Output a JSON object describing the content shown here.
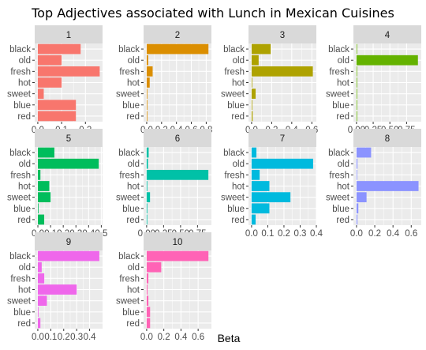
{
  "chart_data": {
    "type": "bar",
    "orientation": "horizontal",
    "title": "Top Adjectives associated with Lunch in Mexican Cuisines",
    "xlabel": "Beta",
    "ylabel": "",
    "categories": [
      "black",
      "old",
      "fresh",
      "hot",
      "sweet",
      "blue",
      "red"
    ],
    "facet_scales": "free_x",
    "grid": true,
    "legend": "none",
    "panels": [
      {
        "label": "1",
        "color": "#F8766D",
        "xlim": [
          -0.013,
          0.272
        ],
        "ticks": [
          0.0,
          0.1,
          0.2
        ],
        "tick_labels": [
          "0.0",
          "0.1",
          "0.2"
        ],
        "values": {
          "black": 0.18,
          "old": 0.1,
          "fresh": 0.26,
          "hot": 0.1,
          "sweet": 0.025,
          "blue": 0.16,
          "red": 0.16
        }
      },
      {
        "label": "2",
        "color": "#DB8E00",
        "xlim": [
          -0.042,
          0.87
        ],
        "ticks": [
          0.0,
          0.2,
          0.4,
          0.6,
          0.8
        ],
        "tick_labels": [
          "0.0",
          "0.2",
          "0.4",
          "0.6",
          "0.8"
        ],
        "values": {
          "black": 0.83,
          "old": 0.02,
          "fresh": 0.08,
          "hot": 0.04,
          "sweet": 0.005,
          "blue": 0.003,
          "red": 0.003
        }
      },
      {
        "label": "3",
        "color": "#AEA200",
        "xlim": [
          -0.031,
          0.645
        ],
        "ticks": [
          0.0,
          0.2,
          0.4,
          0.6
        ],
        "tick_labels": [
          "0.0",
          "0.2",
          "0.4",
          "0.6"
        ],
        "values": {
          "black": 0.19,
          "old": 0.07,
          "fresh": 0.61,
          "hot": 0.003,
          "sweet": 0.04,
          "blue": 0.003,
          "red": 0.01
        }
      },
      {
        "label": "4",
        "color": "#64B200",
        "xlim": [
          -0.046,
          0.97
        ],
        "ticks": [
          0.0,
          0.25,
          0.5,
          0.75
        ],
        "tick_labels": [
          "0.00",
          "0.25",
          "0.50",
          "0.75"
        ],
        "values": {
          "black": 0.005,
          "old": 0.92,
          "fresh": 0.003,
          "hot": 0.01,
          "sweet": 0.003,
          "blue": 0.003,
          "red": 0.01
        }
      },
      {
        "label": "5",
        "color": "#00BD5C",
        "xlim": [
          -0.025,
          0.51
        ],
        "ticks": [
          0.0,
          0.1,
          0.2,
          0.3,
          0.4,
          0.5
        ],
        "tick_labels": [
          "0.0",
          "0.1",
          "0.2",
          "0.3",
          "0.4",
          "0.5"
        ],
        "values": {
          "black": 0.13,
          "old": 0.48,
          "fresh": 0.02,
          "hot": 0.09,
          "sweet": 0.1,
          "blue": 0.005,
          "red": 0.05
        }
      },
      {
        "label": "6",
        "color": "#00C1A7",
        "xlim": [
          -0.045,
          0.955
        ],
        "ticks": [
          0.0,
          0.25,
          0.5,
          0.75
        ],
        "tick_labels": [
          "0.00",
          "0.25",
          "0.50",
          "0.75"
        ],
        "values": {
          "black": 0.03,
          "old": 0.02,
          "fresh": 0.91,
          "hot": 0.01,
          "sweet": 0.05,
          "blue": 0.01,
          "red": 0.005
        }
      },
      {
        "label": "7",
        "color": "#00BADE",
        "xlim": [
          -0.019,
          0.4
        ],
        "ticks": [
          0.0,
          0.1,
          0.2,
          0.3,
          0.4
        ],
        "tick_labels": [
          "0.0",
          "0.1",
          "0.2",
          "0.3",
          "0.4"
        ],
        "values": {
          "black": 0.03,
          "old": 0.38,
          "fresh": 0.05,
          "hot": 0.11,
          "sweet": 0.24,
          "blue": 0.11,
          "red": 0.025
        }
      },
      {
        "label": "8",
        "color": "#8B93FF",
        "xlim": [
          -0.034,
          0.71
        ],
        "ticks": [
          0.0,
          0.2,
          0.4,
          0.6
        ],
        "tick_labels": [
          "0.0",
          "0.2",
          "0.4",
          "0.6"
        ],
        "values": {
          "black": 0.16,
          "old": 0.01,
          "fresh": 0.005,
          "hot": 0.68,
          "sweet": 0.11,
          "blue": 0.02,
          "red": 0.01
        }
      },
      {
        "label": "9",
        "color": "#EF67EB",
        "xlim": [
          -0.024,
          0.5
        ],
        "ticks": [
          0.0,
          0.1,
          0.2,
          0.3,
          0.4
        ],
        "tick_labels": [
          "0.0",
          "0.1",
          "0.2",
          "0.3",
          "0.4"
        ],
        "values": {
          "black": 0.475,
          "old": 0.03,
          "fresh": 0.05,
          "hot": 0.3,
          "sweet": 0.07,
          "blue": 0.005,
          "red": 0.02
        }
      },
      {
        "label": "10",
        "color": "#FF63B6",
        "xlim": [
          -0.036,
          0.755
        ],
        "ticks": [
          0.0,
          0.2,
          0.4,
          0.6
        ],
        "tick_labels": [
          "0.0",
          "0.2",
          "0.4",
          "0.6"
        ],
        "values": {
          "black": 0.72,
          "old": 0.17,
          "fresh": 0.02,
          "hot": 0.01,
          "sweet": 0.02,
          "blue": 0.04,
          "red": 0.04
        }
      }
    ]
  }
}
